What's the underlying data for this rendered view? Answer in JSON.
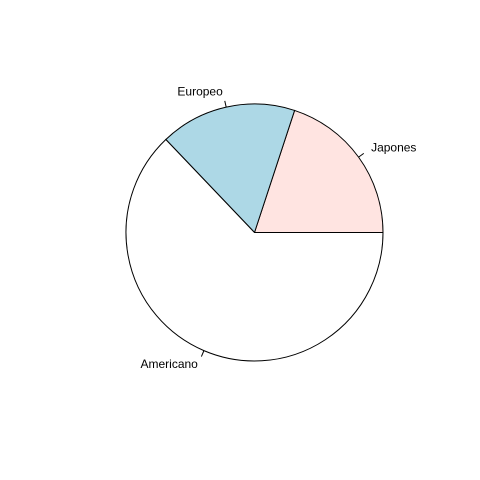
{
  "chart_data": {
    "type": "pie",
    "title": "",
    "categories": [
      "Japones",
      "Europeo",
      "Americano"
    ],
    "values": [
      79,
      68,
      249
    ],
    "colors": [
      "#FFE4E1",
      "#ADD8E6",
      "#FFFFFF"
    ],
    "start": "3 o'clock",
    "direction": "counterclockwise"
  }
}
